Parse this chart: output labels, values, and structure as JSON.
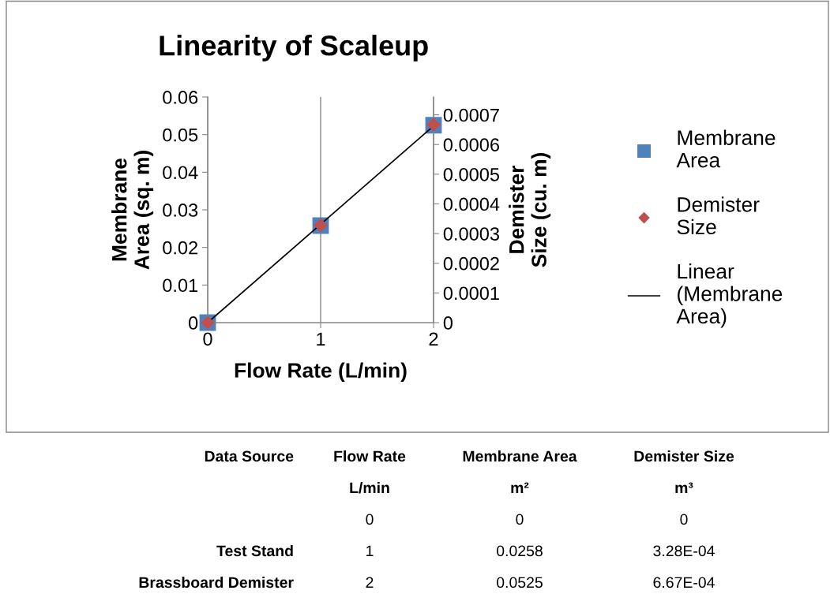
{
  "chart_data": {
    "type": "scatter",
    "title": "Linearity of Scaleup",
    "xlabel": "Flow Rate (L/min)",
    "ylabel": "Membrane Area (sq. m)",
    "y2label": "Demister Size (cu. m)",
    "x": [
      0,
      1,
      2
    ],
    "series": [
      {
        "name": "Membrane Area",
        "color": "#4f81bd",
        "marker": "square",
        "values": [
          0,
          0.0258,
          0.0525
        ]
      },
      {
        "name": "Demister Size",
        "color": "#c0504d",
        "marker": "diamond",
        "axis": "y2",
        "values": [
          0,
          0.000328,
          0.000667
        ]
      },
      {
        "name": "Linear (Membrane Area)",
        "type": "line",
        "color": "#000000",
        "marker": "none",
        "line_style": "solid",
        "x": [
          0,
          2
        ],
        "values": [
          0,
          0.0523
        ]
      }
    ],
    "xlim": [
      0,
      2
    ],
    "xticks": [
      0,
      1,
      2
    ],
    "ylim": [
      0,
      0.06
    ],
    "yticks": [
      0,
      0.01,
      0.02,
      0.03,
      0.04,
      0.05,
      0.06
    ],
    "y2lim": [
      0,
      0.00076
    ],
    "y2ticks": [
      0,
      0.0001,
      0.0002,
      0.0003,
      0.0004,
      0.0005,
      0.0006,
      0.0007
    ],
    "grid": "x",
    "legend": "right",
    "annotations": [
      "Data Source",
      "Flow Rate",
      "Membrane Area",
      "Demister Size",
      "L/min",
      "m²",
      "m³",
      "0",
      "0",
      "0",
      "Test Stand",
      "1",
      "0.0258",
      "3.28E-04",
      "Brassboard Demister",
      "2",
      "0.0525",
      "6.67E-04"
    ]
  }
}
